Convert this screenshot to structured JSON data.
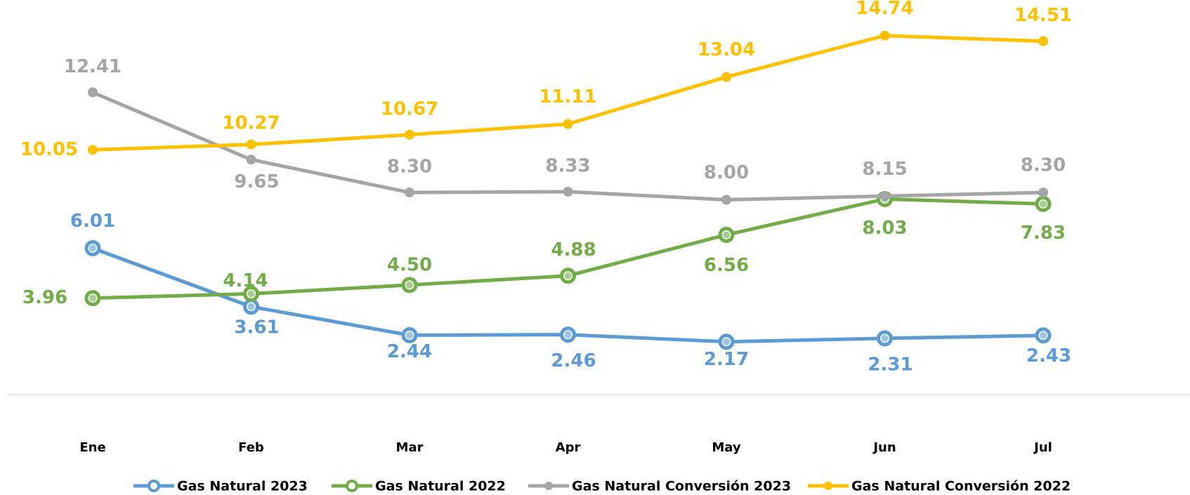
{
  "chart_data": {
    "type": "line",
    "categories": [
      "Ene",
      "Feb",
      "Mar",
      "Apr",
      "May",
      "Jun",
      "Jul"
    ],
    "series": [
      {
        "name": "Gas Natural 2023",
        "color": "#5b9bd5",
        "values": [
          6.01,
          3.61,
          2.44,
          2.46,
          2.17,
          2.31,
          2.43
        ]
      },
      {
        "name": "Gas Natural 2022",
        "color": "#70ad47",
        "values": [
          3.96,
          4.14,
          4.5,
          4.88,
          6.56,
          8.03,
          7.83
        ],
        "value_labels": [
          "3.96",
          "4.14",
          "4.50",
          "4.88",
          "6.56",
          "8.03",
          "7.83"
        ]
      },
      {
        "name": "Gas Natural Conversión 2023",
        "color": "#a5a5a5",
        "values": [
          12.41,
          9.65,
          8.3,
          8.33,
          8.0,
          8.15,
          8.3
        ],
        "value_labels": [
          "12.41",
          "9.65",
          "8.30",
          "8.33",
          "8.00",
          "8.15",
          "8.30"
        ]
      },
      {
        "name": "Gas Natural Conversión 2022",
        "color": "#ffc000",
        "values": [
          10.05,
          10.27,
          10.67,
          11.11,
          13.04,
          14.74,
          14.51
        ]
      }
    ],
    "ylim": [
      0,
      16
    ],
    "legend": "bottom"
  }
}
